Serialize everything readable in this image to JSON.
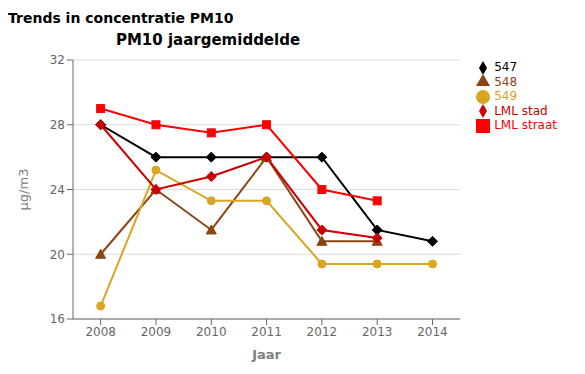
{
  "chart_data": {
    "type": "line",
    "title": "Trends in concentratie PM10",
    "subtitle": "PM10 jaargemiddelde",
    "x_label": "Jaar",
    "y_label": "µg/m3",
    "x": [
      2008,
      2009,
      2010,
      2011,
      2012,
      2013,
      2014
    ],
    "series": [
      {
        "name": "547",
        "color": "#000000",
        "marker": "diamond",
        "values": [
          28.0,
          26.0,
          26.0,
          26.0,
          26.0,
          21.5,
          20.8
        ]
      },
      {
        "name": "548",
        "color": "#8B4513",
        "marker": "triangle",
        "values": [
          20.0,
          24.0,
          21.5,
          26.0,
          20.8,
          20.8,
          null
        ]
      },
      {
        "name": "549",
        "color": "#DAA520",
        "marker": "circle",
        "values": [
          16.8,
          25.2,
          23.3,
          23.3,
          19.4,
          19.4,
          19.4
        ]
      },
      {
        "name": "LML stad",
        "color": "#CC0000",
        "marker": "diamond",
        "values": [
          28.0,
          24.0,
          24.8,
          26.0,
          21.5,
          21.0,
          null
        ]
      },
      {
        "name": "LML straat",
        "color": "#FF0000",
        "marker": "square",
        "values": [
          29.0,
          28.0,
          27.5,
          28.0,
          24.0,
          23.3,
          null
        ]
      }
    ],
    "xlim": [
      2007.5,
      2014.5
    ],
    "xticks": [
      2008,
      2009,
      2010,
      2011,
      2012,
      2013,
      2014
    ],
    "ylim": [
      16,
      32
    ],
    "yticks": [
      16,
      20,
      24,
      28,
      32
    ],
    "grid": "y",
    "legend": "right"
  }
}
